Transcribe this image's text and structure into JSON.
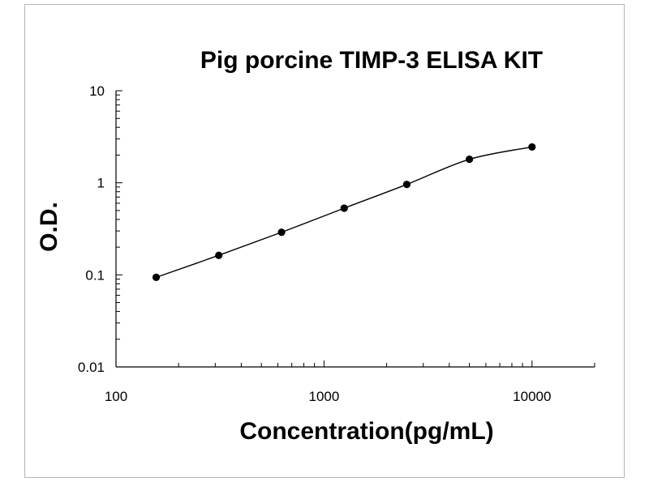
{
  "chart_data": {
    "type": "scatter",
    "title": "Pig porcine TIMP-3 ELISA KIT",
    "xlabel": "Concentration(pg/mL)",
    "ylabel": "O.D.",
    "x_scale": "log",
    "y_scale": "log",
    "xlim": [
      100,
      20000
    ],
    "ylim": [
      0.01,
      10
    ],
    "x_ticks": [
      {
        "value": 100,
        "label": "100"
      },
      {
        "value": 1000,
        "label": "1000"
      },
      {
        "value": 10000,
        "label": "10000"
      }
    ],
    "y_ticks": [
      {
        "value": 0.01,
        "label": "0.01"
      },
      {
        "value": 0.1,
        "label": "0.1"
      },
      {
        "value": 1,
        "label": "1"
      },
      {
        "value": 10,
        "label": "10"
      }
    ],
    "grid": false,
    "legend": "none",
    "marker_color": "#000000",
    "line_color": "#000000",
    "series": [
      {
        "x": [
          156,
          312,
          625,
          1250,
          2500,
          5000,
          10000
        ],
        "y": [
          0.094,
          0.163,
          0.29,
          0.53,
          0.96,
          1.8,
          2.45
        ],
        "fit": "smooth-curve"
      }
    ]
  }
}
